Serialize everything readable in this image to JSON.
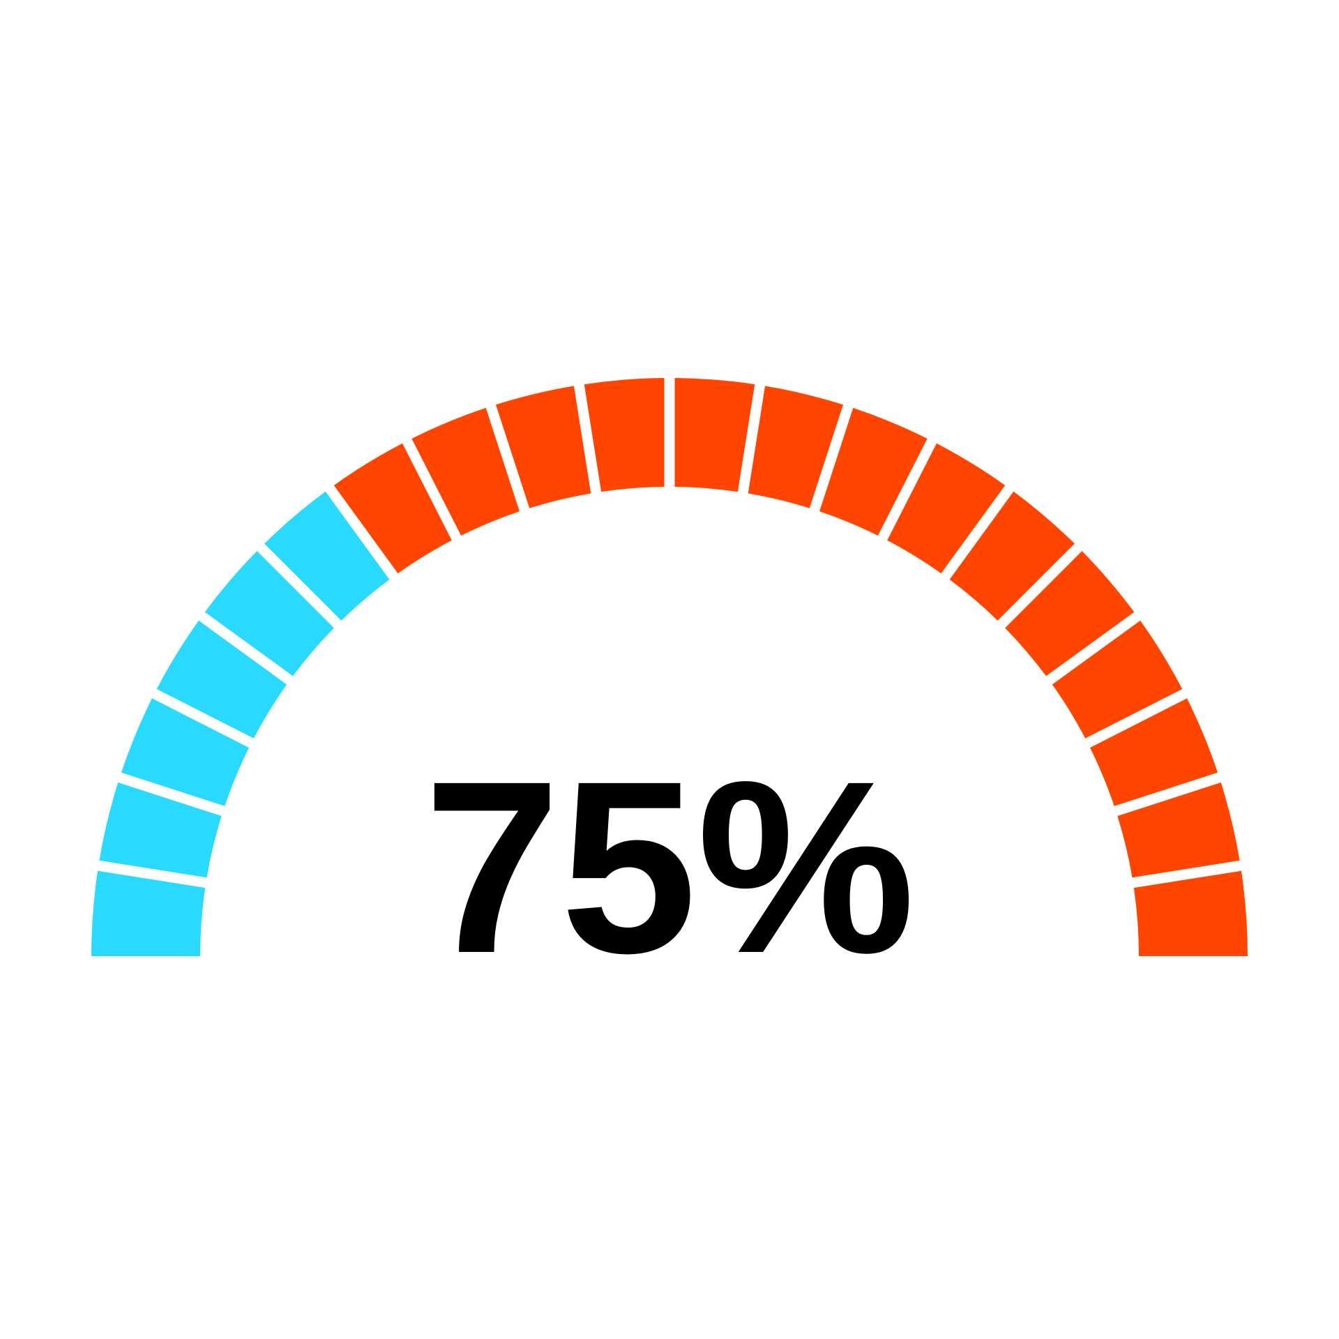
{
  "chart_data": {
    "type": "gauge",
    "values": [
      75
    ],
    "value_labels": [
      "75%"
    ],
    "segments": [
      {
        "color": "#29d9fe",
        "count": 6
      },
      {
        "color": "#ff4500",
        "count": 14
      }
    ]
  }
}
